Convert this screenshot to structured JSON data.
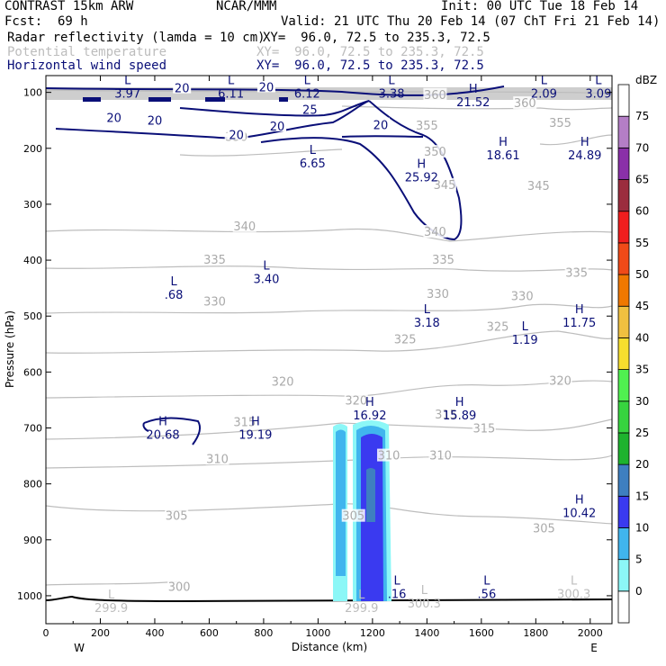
{
  "header": {
    "model": "CONTRAST 15km ARW",
    "center": "NCAR/MMM",
    "init": "Init: 00 UTC Tue 18 Feb 14",
    "fcst_label": "Fcst:",
    "fcst_value": "69 h",
    "valid": "Valid: 21 UTC Thu 20 Feb 14 (07 ChT Fri 21 Feb 14)",
    "fields": [
      {
        "name": "Radar reflectivity (lamda = 10 cm)",
        "xy": "XY=  96.0, 72.5 to 235.3, 72.5",
        "color": "#000000"
      },
      {
        "name": "Potential temperature",
        "xy": "XY=  96.0, 72.5 to 235.3, 72.5",
        "color": "#bdbdbd"
      },
      {
        "name": "Horizontal wind speed",
        "xy": "XY=  96.0, 72.5 to 235.3, 72.5",
        "color": "#0a0f78"
      }
    ]
  },
  "chart_data": {
    "type": "heatmap",
    "description_type": "vertical cross-section",
    "xlabel": "Distance (km)",
    "ylabel": "Pressure (hPa)",
    "xlim": [
      0,
      2080
    ],
    "ylim": [
      1050,
      70
    ],
    "x_ticks": [
      "0",
      "200",
      "400",
      "600",
      "800",
      "1000",
      "1200",
      "1400",
      "1600",
      "1800",
      "2000"
    ],
    "y_ticks": [
      "100",
      "200",
      "300",
      "400",
      "500",
      "600",
      "700",
      "800",
      "900",
      "1000"
    ],
    "x_end_labels": {
      "left": "W",
      "right": "E"
    },
    "colorbar": {
      "unit": "dBZ",
      "levels": [
        "0",
        "5",
        "10",
        "15",
        "20",
        "25",
        "30",
        "35",
        "40",
        "45",
        "50",
        "55",
        "60",
        "65",
        "70",
        "75"
      ],
      "colors": [
        "#ffffff",
        "#8cf7f7",
        "#40b5ee",
        "#3a3af0",
        "#3e7fc0",
        "#1eb32e",
        "#37d43f",
        "#50f050",
        "#f6de2e",
        "#f0c040",
        "#f07800",
        "#f04a18",
        "#f01e1e",
        "#9b2d3e",
        "#8a30a8",
        "#b47ec6",
        "#ffffff"
      ]
    },
    "theta_labels": [
      {
        "text": "360",
        "x": 1430,
        "p": 105
      },
      {
        "text": "360",
        "x": 1760,
        "p": 120
      },
      {
        "text": "355",
        "x": 1400,
        "p": 160
      },
      {
        "text": "355",
        "x": 1890,
        "p": 155
      },
      {
        "text": "350",
        "x": 700,
        "p": 180
      },
      {
        "text": "350",
        "x": 1430,
        "p": 207
      },
      {
        "text": "345",
        "x": 1810,
        "p": 268
      },
      {
        "text": "345",
        "x": 1465,
        "p": 266
      },
      {
        "text": "340",
        "x": 730,
        "p": 340
      },
      {
        "text": "340",
        "x": 1430,
        "p": 350
      },
      {
        "text": "335",
        "x": 620,
        "p": 400
      },
      {
        "text": "335",
        "x": 1460,
        "p": 400
      },
      {
        "text": "335",
        "x": 1950,
        "p": 423
      },
      {
        "text": "330",
        "x": 620,
        "p": 475
      },
      {
        "text": "330",
        "x": 1440,
        "p": 461
      },
      {
        "text": "330",
        "x": 1750,
        "p": 465
      },
      {
        "text": "325",
        "x": 1660,
        "p": 520
      },
      {
        "text": "325",
        "x": 1320,
        "p": 542
      },
      {
        "text": "320",
        "x": 870,
        "p": 618
      },
      {
        "text": "320",
        "x": 1140,
        "p": 652
      },
      {
        "text": "320",
        "x": 1890,
        "p": 616
      },
      {
        "text": "315",
        "x": 730,
        "p": 690
      },
      {
        "text": "315",
        "x": 1470,
        "p": 677
      },
      {
        "text": "315",
        "x": 1610,
        "p": 702
      },
      {
        "text": "310",
        "x": 630,
        "p": 756
      },
      {
        "text": "310",
        "x": 1260,
        "p": 750
      },
      {
        "text": "310",
        "x": 1450,
        "p": 750
      },
      {
        "text": "305",
        "x": 480,
        "p": 858
      },
      {
        "text": "305",
        "x": 1130,
        "p": 858
      },
      {
        "text": "305",
        "x": 1830,
        "p": 880
      },
      {
        "text": "300",
        "x": 490,
        "p": 985
      }
    ],
    "wind_labels": [
      {
        "text": "20",
        "x": 500,
        "p": 92
      },
      {
        "text": "20",
        "x": 810,
        "p": 90
      },
      {
        "text": "20",
        "x": 250,
        "p": 145
      },
      {
        "text": "20",
        "x": 400,
        "p": 150
      },
      {
        "text": "20",
        "x": 700,
        "p": 175
      },
      {
        "text": "20",
        "x": 850,
        "p": 160
      },
      {
        "text": "25",
        "x": 970,
        "p": 130
      },
      {
        "text": "20",
        "x": 1230,
        "p": 158
      }
    ],
    "extrema": [
      {
        "kind": "L",
        "value": "3.97",
        "x": 300,
        "p": 90,
        "color": "#0a0f78"
      },
      {
        "kind": "L",
        "value": "6.11",
        "x": 680,
        "p": 90,
        "color": "#0a0f78"
      },
      {
        "kind": "L",
        "value": "6.12",
        "x": 960,
        "p": 90,
        "color": "#0a0f78"
      },
      {
        "kind": "L",
        "value": "3.38",
        "x": 1270,
        "p": 90,
        "color": "#0a0f78"
      },
      {
        "kind": "H",
        "value": "21.52",
        "x": 1570,
        "p": 105,
        "color": "#0a0f78"
      },
      {
        "kind": "L",
        "value": "2.09",
        "x": 1830,
        "p": 90,
        "color": "#0a0f78"
      },
      {
        "kind": "L",
        "value": "3.09",
        "x": 2030,
        "p": 90,
        "color": "#0a0f78"
      },
      {
        "kind": "L",
        "value": "6.65",
        "x": 980,
        "p": 215,
        "color": "#0a0f78"
      },
      {
        "kind": "H",
        "value": "18.61",
        "x": 1680,
        "p": 200,
        "color": "#0a0f78"
      },
      {
        "kind": "H",
        "value": "25.92",
        "x": 1380,
        "p": 240,
        "color": "#0a0f78"
      },
      {
        "kind": "H",
        "value": "24.89",
        "x": 1980,
        "p": 200,
        "color": "#0a0f78"
      },
      {
        "kind": "L",
        "value": ".68",
        "x": 470,
        "p": 450,
        "color": "#0a0f78"
      },
      {
        "kind": "L",
        "value": "3.40",
        "x": 810,
        "p": 422,
        "color": "#0a0f78"
      },
      {
        "kind": "L",
        "value": "3.18",
        "x": 1400,
        "p": 500,
        "color": "#0a0f78"
      },
      {
        "kind": "L",
        "value": "1.19",
        "x": 1760,
        "p": 530,
        "color": "#0a0f78"
      },
      {
        "kind": "H",
        "value": "11.75",
        "x": 1960,
        "p": 500,
        "color": "#0a0f78"
      },
      {
        "kind": "H",
        "value": "16.92",
        "x": 1190,
        "p": 665,
        "color": "#0a0f78"
      },
      {
        "kind": "H",
        "value": "15.89",
        "x": 1520,
        "p": 665,
        "color": "#0a0f78"
      },
      {
        "kind": "H",
        "value": "20.68",
        "x": 430,
        "p": 700,
        "color": "#0a0f78"
      },
      {
        "kind": "H",
        "value": "19.19",
        "x": 770,
        "p": 700,
        "color": "#0a0f78"
      },
      {
        "kind": "H",
        "value": "10.42",
        "x": 1960,
        "p": 840,
        "color": "#0a0f78"
      },
      {
        "kind": "L",
        "value": ".16",
        "x": 1290,
        "p": 985,
        "color": "#0a0f78"
      },
      {
        "kind": "L",
        "value": ".56",
        "x": 1620,
        "p": 985,
        "color": "#0a0f78"
      },
      {
        "kind": "L",
        "value": "300.3",
        "x": 1390,
        "p": 1002,
        "color": "#bdbdbd"
      },
      {
        "kind": "L",
        "value": "300.3",
        "x": 1940,
        "p": 985,
        "color": "#bdbdbd"
      },
      {
        "kind": "L",
        "value": "299.9",
        "x": 240,
        "p": 1010,
        "color": "#bdbdbd"
      },
      {
        "kind": "L",
        "value": "299.9",
        "x": 1160,
        "p": 1010,
        "color": "#bdbdbd"
      }
    ]
  }
}
